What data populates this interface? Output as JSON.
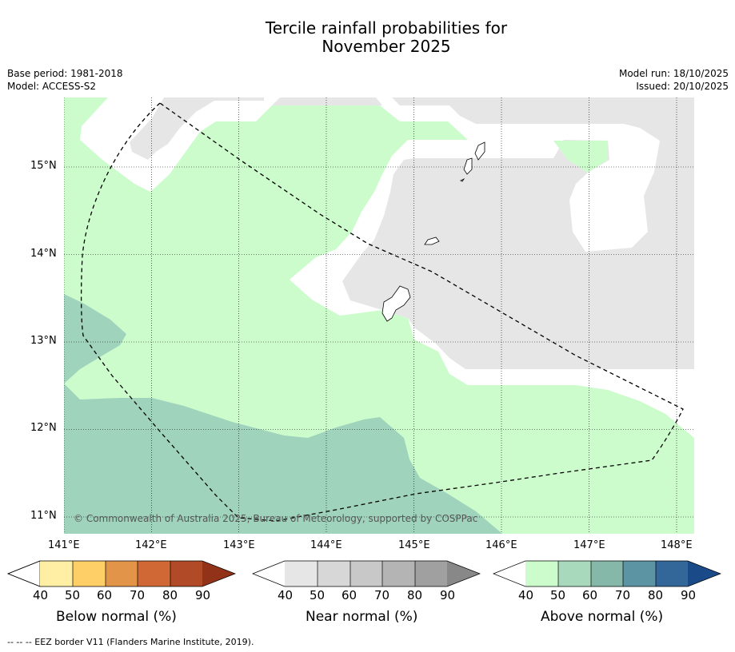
{
  "title_line1": "Tercile rainfall probabilities for",
  "title_line2": "November 2025",
  "base_period": "Base period: 1981-2018",
  "model": "Model: ACCESS-S2",
  "model_run": "Model run: 18/10/2025",
  "issued": "Issued: 20/10/2025",
  "copyright": "© Commonwealth of Australia 2025, Bureau of Meteorology, supported by COSPPac",
  "map": {
    "lat_labels": [
      "15°N",
      "14°N",
      "13°N",
      "12°N",
      "11°N"
    ],
    "lon_labels": [
      "141°E",
      "142°E",
      "143°E",
      "144°E",
      "145°E",
      "146°E",
      "147°E",
      "148°E"
    ],
    "colors": {
      "near_normal_40_50": "#e6e6e6",
      "above_normal_40_50": "#ccfccc",
      "above_normal_50_60": "#9fd3bc"
    }
  },
  "colorbars": [
    {
      "title": "Below normal (%)",
      "ticks": [
        "40",
        "50",
        "60",
        "70",
        "80",
        "90"
      ],
      "colors": [
        "#ffefa4",
        "#fece67",
        "#e29449",
        "#d06835",
        "#b04a27",
        "#913219"
      ]
    },
    {
      "title": "Near normal (%)",
      "ticks": [
        "40",
        "50",
        "60",
        "70",
        "80",
        "90"
      ],
      "colors": [
        "#e6e6e6",
        "#d7d7d7",
        "#c8c8c8",
        "#b4b4b4",
        "#a0a0a0",
        "#888888"
      ]
    },
    {
      "title": "Above normal (%)",
      "ticks": [
        "40",
        "50",
        "60",
        "70",
        "80",
        "90"
      ],
      "colors": [
        "#ccfccc",
        "#a9d9bc",
        "#85b8a8",
        "#5c94a4",
        "#336699",
        "#1a4a88"
      ]
    }
  ],
  "footnote": "--  --  -- EEZ border V11 (Flanders Marine Institute, 2019)."
}
